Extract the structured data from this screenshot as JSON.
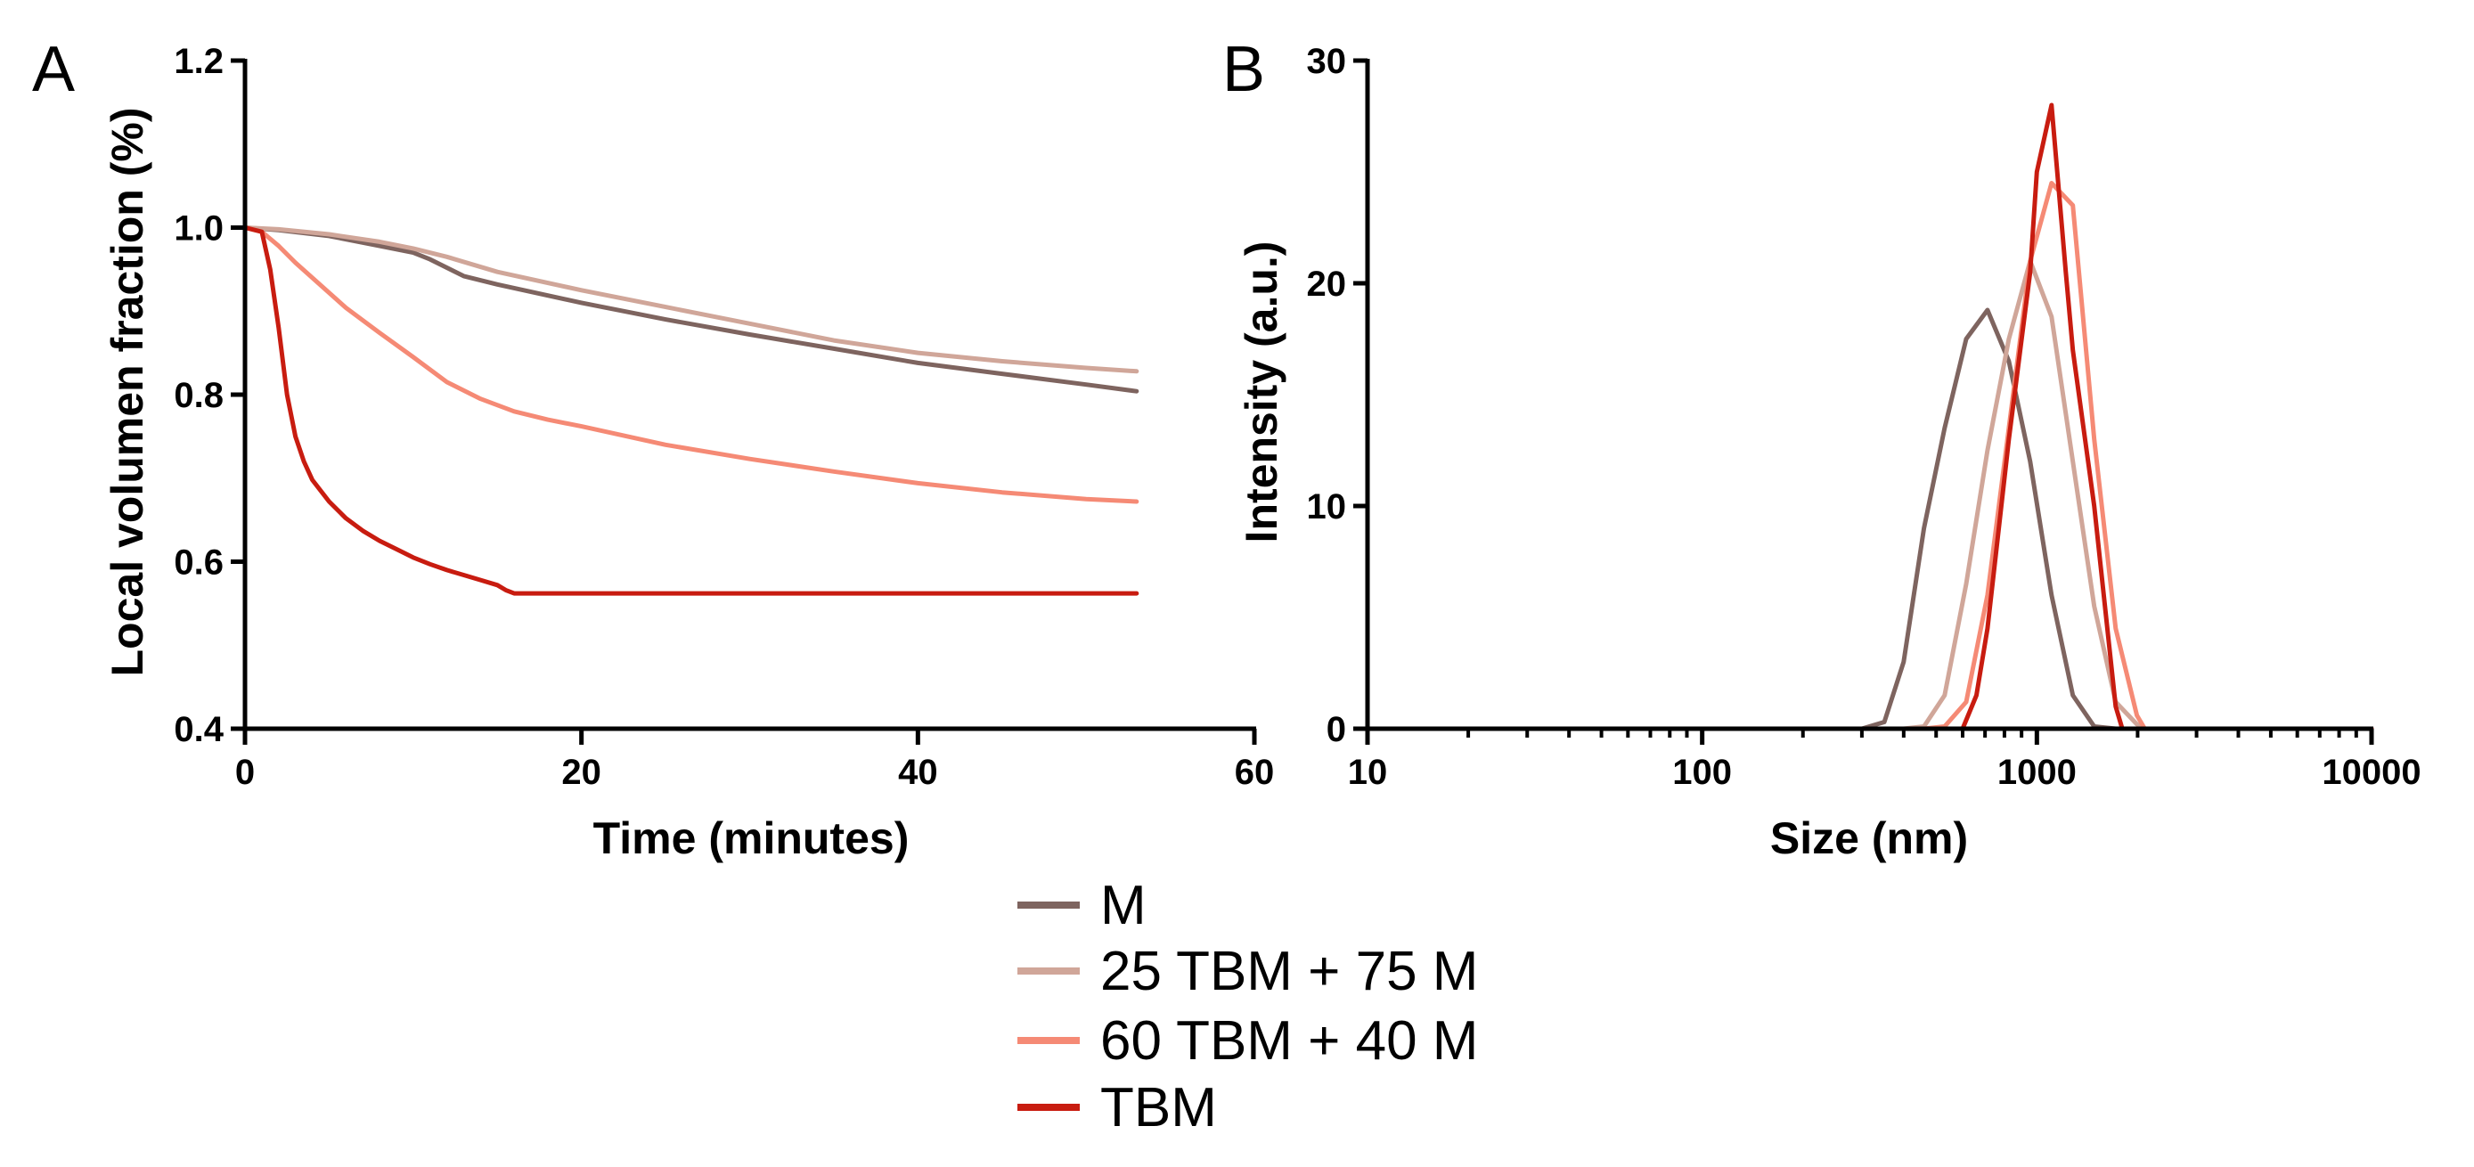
{
  "colors": {
    "M": "#7e645f",
    "25 TBM + 75 M": "#d0a699",
    "60 TBM + 40 M": "#f58a75",
    "TBM": "#c81c10"
  },
  "legend": [
    {
      "key": "M",
      "label": "M"
    },
    {
      "key": "25 TBM + 75 M",
      "label": "25 TBM + 75 M"
    },
    {
      "key": "60 TBM + 40 M",
      "label": "60 TBM + 40 M"
    },
    {
      "key": "TBM",
      "label": "TBM"
    }
  ],
  "chart_data": [
    {
      "panel": "A",
      "type": "line",
      "xlabel": "Time (minutes)",
      "ylabel": "Local volumen fraction (%)",
      "xlim": [
        0,
        60
      ],
      "ylim": [
        0.4,
        1.2
      ],
      "xticks": [
        0,
        20,
        40,
        60
      ],
      "yticks": [
        0.4,
        0.6,
        0.8,
        1.0,
        1.2
      ],
      "xticklabels": [
        "0",
        "20",
        "40",
        "60"
      ],
      "yticklabels": [
        "0.4",
        "0.6",
        "0.8",
        "1.0",
        "1.2"
      ],
      "series": [
        {
          "name": "M",
          "x": [
            0,
            2,
            5,
            8,
            10,
            11,
            12,
            13,
            15,
            20,
            25,
            30,
            35,
            40,
            45,
            50,
            53
          ],
          "y": [
            1.0,
            0.997,
            0.99,
            0.978,
            0.97,
            0.962,
            0.952,
            0.942,
            0.932,
            0.91,
            0.89,
            0.872,
            0.855,
            0.838,
            0.825,
            0.812,
            0.804
          ]
        },
        {
          "name": "25 TBM + 75 M",
          "x": [
            0,
            2,
            5,
            8,
            10,
            12,
            15,
            20,
            25,
            30,
            35,
            40,
            45,
            50,
            53
          ],
          "y": [
            1.0,
            0.998,
            0.992,
            0.983,
            0.975,
            0.965,
            0.947,
            0.925,
            0.905,
            0.885,
            0.865,
            0.85,
            0.84,
            0.832,
            0.828
          ]
        },
        {
          "name": "60 TBM + 40 M",
          "x": [
            0,
            1,
            2,
            3,
            4,
            5,
            6,
            8,
            10,
            12,
            14,
            16,
            18,
            20,
            25,
            30,
            35,
            40,
            45,
            50,
            53
          ],
          "y": [
            1.0,
            0.995,
            0.978,
            0.958,
            0.94,
            0.922,
            0.904,
            0.874,
            0.845,
            0.815,
            0.795,
            0.78,
            0.77,
            0.762,
            0.74,
            0.723,
            0.708,
            0.694,
            0.683,
            0.675,
            0.672
          ]
        },
        {
          "name": "TBM",
          "x": [
            0,
            1,
            1.5,
            2,
            2.5,
            3,
            3.5,
            4,
            5,
            6,
            7,
            8,
            9,
            10,
            11,
            12,
            13,
            14,
            15,
            15.5,
            16,
            20,
            30,
            40,
            53
          ],
          "y": [
            1.0,
            0.995,
            0.95,
            0.88,
            0.8,
            0.75,
            0.72,
            0.698,
            0.672,
            0.652,
            0.637,
            0.625,
            0.615,
            0.605,
            0.597,
            0.59,
            0.584,
            0.578,
            0.572,
            0.566,
            0.562,
            0.562,
            0.562,
            0.562,
            0.562
          ]
        }
      ]
    },
    {
      "panel": "B",
      "type": "line",
      "xscale": "log",
      "xlabel": "Size (nm)",
      "ylabel": "Intensity (a.u.)",
      "xlim": [
        10,
        10000
      ],
      "ylim": [
        0,
        30
      ],
      "xticks": [
        10,
        100,
        1000,
        10000
      ],
      "yticks": [
        0,
        10,
        20,
        30
      ],
      "xticklabels": [
        "10",
        "100",
        "1000",
        "10000"
      ],
      "yticklabels": [
        "0",
        "10",
        "20",
        "30"
      ],
      "series": [
        {
          "name": "M",
          "x": [
            10,
            300,
            350,
            400,
            460,
            530,
            615,
            712,
            825,
            955,
            1106,
            1281,
            1484,
            1720,
            10000
          ],
          "y": [
            0,
            0,
            0.3,
            3.0,
            9.0,
            13.5,
            17.5,
            18.8,
            16.5,
            12.0,
            6.0,
            1.5,
            0.1,
            0,
            0
          ]
        },
        {
          "name": "25 TBM + 75 M",
          "x": [
            10,
            400,
            460,
            530,
            615,
            712,
            825,
            955,
            1106,
            1281,
            1484,
            1720,
            1990,
            2100,
            10000
          ],
          "y": [
            0,
            0,
            0.1,
            1.5,
            6.5,
            12.5,
            17.5,
            21.0,
            18.5,
            12.0,
            5.5,
            1.2,
            0.2,
            0,
            0
          ]
        },
        {
          "name": "60 TBM + 40 M",
          "x": [
            10,
            460,
            530,
            615,
            712,
            825,
            955,
            1106,
            1281,
            1484,
            1720,
            1990,
            2100,
            10000
          ],
          "y": [
            0,
            0,
            0.1,
            1.2,
            6.0,
            13.5,
            21.0,
            24.5,
            23.5,
            13.0,
            4.5,
            0.6,
            0,
            0
          ]
        },
        {
          "name": "TBM",
          "x": [
            10,
            600,
            660,
            712,
            825,
            955,
            1000,
            1106,
            1220,
            1281,
            1484,
            1720,
            1800,
            10000
          ],
          "y": [
            0,
            0,
            1.5,
            4.5,
            13.0,
            20.5,
            25.0,
            28.0,
            20.5,
            17.0,
            10.0,
            1.0,
            0,
            0
          ]
        }
      ]
    }
  ]
}
